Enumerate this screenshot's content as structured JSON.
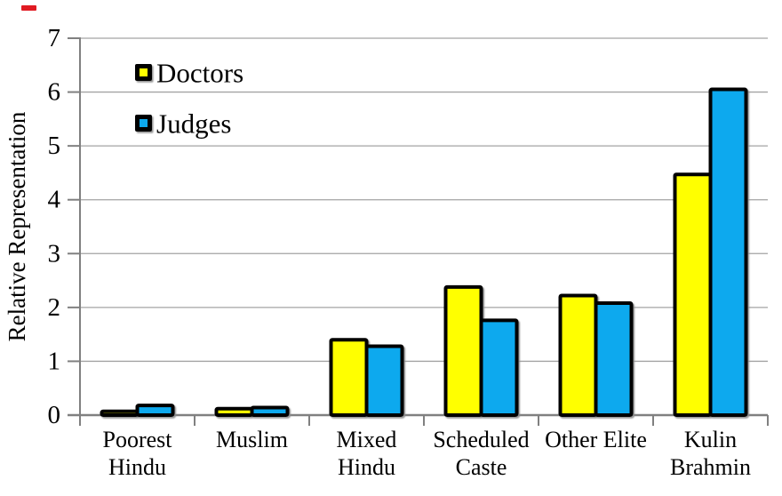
{
  "decorations": {
    "top_left_dash_color": "#e01a22"
  },
  "chart_data": {
    "type": "bar",
    "title": "",
    "categories": [
      "Poorest Hindu",
      "Muslim",
      "Mixed Hindu",
      "Scheduled Caste",
      "Other Elite",
      "Kulin Brahmin"
    ],
    "category_label_lines": [
      [
        "Poorest",
        "Hindu"
      ],
      [
        "Muslim"
      ],
      [
        "Mixed",
        "Hindu"
      ],
      [
        "Scheduled",
        "Caste"
      ],
      [
        "Other Elite"
      ],
      [
        "Kulin",
        "Brahmin"
      ]
    ],
    "series": [
      {
        "name": "Doctors",
        "color": "#ffff00",
        "values": [
          0.07,
          0.12,
          1.4,
          2.38,
          2.22,
          4.47
        ]
      },
      {
        "name": "Judges",
        "color": "#0aa9ee",
        "values": [
          0.18,
          0.14,
          1.28,
          1.76,
          2.08,
          6.05
        ]
      }
    ],
    "xlabel": "",
    "ylabel": "Relative Representation",
    "ylim": [
      0,
      7
    ],
    "yticks": [
      0,
      1,
      2,
      3,
      4,
      5,
      6,
      7
    ],
    "grid": true,
    "legend_position": "top-left-inside",
    "bar_border_color": "#000000",
    "gridline_color": "#a3a3a3",
    "axis_color": "#808080",
    "text_color": "#000000",
    "background": "#ffffff"
  }
}
